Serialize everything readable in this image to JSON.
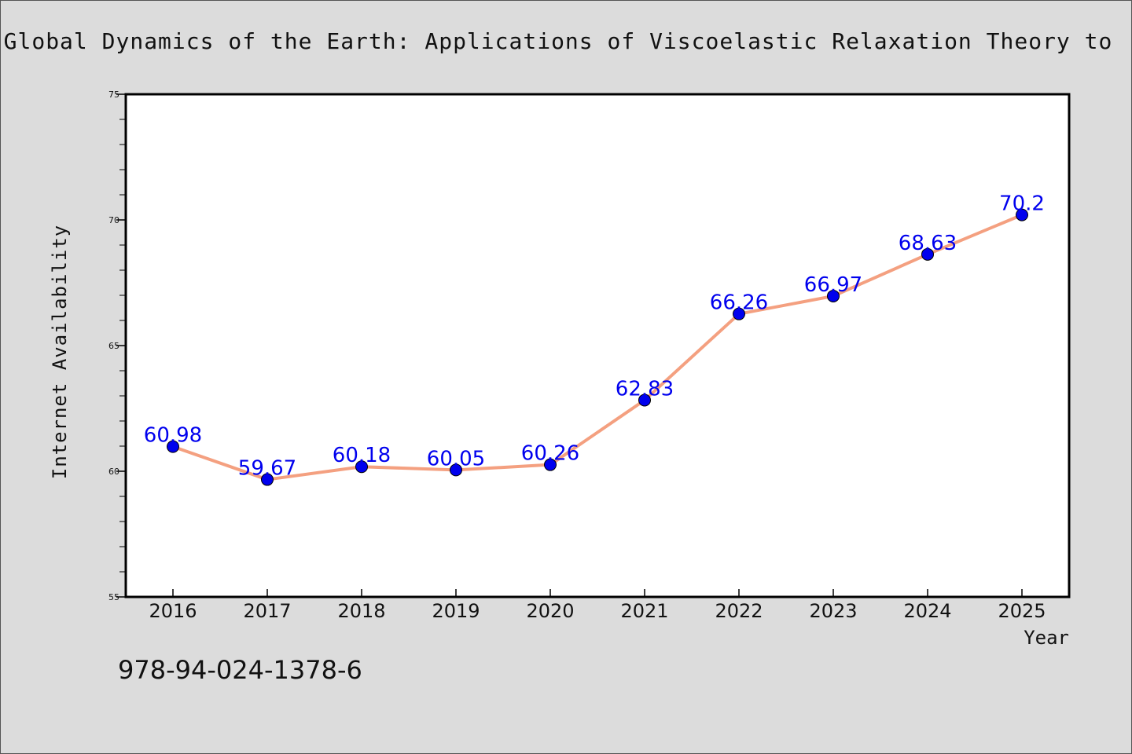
{
  "chart_data": {
    "type": "line",
    "title": "Global Dynamics of the Earth: Applications of Viscoelastic Relaxation Theory to",
    "xlabel": "Year",
    "ylabel": "Internet Availability",
    "categories": [
      "2016",
      "2017",
      "2018",
      "2019",
      "2020",
      "2021",
      "2022",
      "2023",
      "2024",
      "2025"
    ],
    "series": [
      {
        "values": [
          60.98,
          59.67,
          60.18,
          60.05,
          60.26,
          62.83,
          66.26,
          66.97,
          68.63,
          70.2
        ],
        "labels": [
          "60.98",
          "59.67",
          "60.18",
          "60.05",
          "60.26",
          "62.83",
          "66.26",
          "66.97",
          "68.63",
          "70.2"
        ],
        "line_color": "#f4a080",
        "marker_color": "#0000ee"
      }
    ],
    "ylim": [
      55,
      75
    ],
    "yticks": [
      "55",
      "60",
      "65",
      "70",
      "75"
    ],
    "grid": false,
    "annotation": "978-94-024-1378-6"
  }
}
